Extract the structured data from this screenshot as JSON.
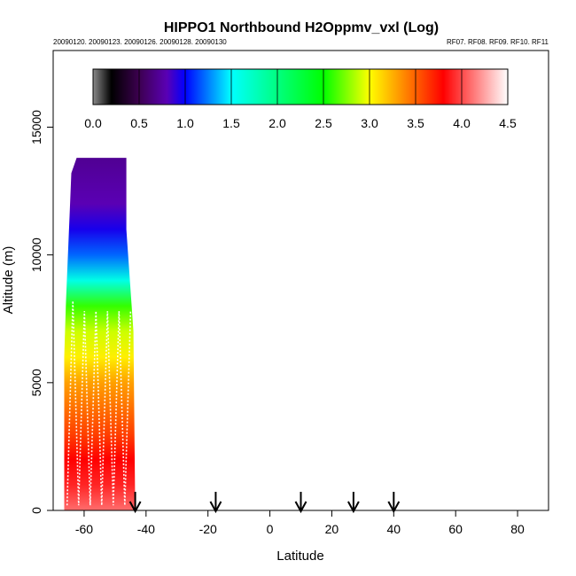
{
  "chart_data": {
    "type": "heatmap",
    "title": "HIPPO1 Northbound H2Oppmv_vxl (Log)",
    "subtitle_left": "20090120. 20090123. 20090126. 20090128. 20090130",
    "subtitle_right": "RF07. RF08. RF09. RF10. RF11",
    "xlabel": "Latitude",
    "ylabel": "Altitude (m)",
    "xlim": [
      -70,
      90
    ],
    "ylim": [
      0,
      18000
    ],
    "x_ticks": [
      "-60",
      "-40",
      "-20",
      "0",
      "20",
      "40",
      "60",
      "80"
    ],
    "x_tick_values": [
      -60,
      -40,
      -20,
      0,
      20,
      40,
      60,
      80
    ],
    "y_ticks": [
      "0",
      "5000",
      "10000",
      "15000"
    ],
    "y_tick_values": [
      0,
      5000,
      10000,
      15000
    ],
    "colorbar": {
      "range": [
        0,
        4.5
      ],
      "tick_labels": [
        "0.0",
        "0.5",
        "1.0",
        "1.5",
        "2.0",
        "2.5",
        "3.0",
        "3.5",
        "4.0",
        "4.5"
      ],
      "tick_values": [
        0,
        0.5,
        1.0,
        1.5,
        2.0,
        2.5,
        3.0,
        3.5,
        4.0,
        4.5
      ],
      "color_stops": [
        {
          "v": 0.0,
          "c": "#8a8a8a"
        },
        {
          "v": 0.2,
          "c": "#000000"
        },
        {
          "v": 0.5,
          "c": "#3d0050"
        },
        {
          "v": 0.8,
          "c": "#5a00b4"
        },
        {
          "v": 1.0,
          "c": "#0000ff"
        },
        {
          "v": 1.5,
          "c": "#00ffff"
        },
        {
          "v": 2.0,
          "c": "#00ff80"
        },
        {
          "v": 2.5,
          "c": "#00ff00"
        },
        {
          "v": 3.0,
          "c": "#ffff00"
        },
        {
          "v": 3.4,
          "c": "#ff8000"
        },
        {
          "v": 3.8,
          "c": "#ff0000"
        },
        {
          "v": 4.5,
          "c": "#ffffff"
        }
      ]
    },
    "data_region": {
      "lat_range": [
        -67,
        -43.5
      ],
      "top_altitude": 13800,
      "profile": [
        {
          "alt": 0,
          "value": 4.1
        },
        {
          "alt": 1000,
          "value": 3.9
        },
        {
          "alt": 2000,
          "value": 3.8
        },
        {
          "alt": 3000,
          "value": 3.6
        },
        {
          "alt": 4000,
          "value": 3.45
        },
        {
          "alt": 5000,
          "value": 3.3
        },
        {
          "alt": 6000,
          "value": 3.05
        },
        {
          "alt": 7000,
          "value": 2.9
        },
        {
          "alt": 8000,
          "value": 2.6
        },
        {
          "alt": 9000,
          "value": 1.6
        },
        {
          "alt": 10000,
          "value": 1.2
        },
        {
          "alt": 11000,
          "value": 0.95
        },
        {
          "alt": 12000,
          "value": 0.8
        },
        {
          "alt": 13800,
          "value": 0.7
        }
      ]
    },
    "arrow_latitudes": [
      -43.5,
      -17.5,
      10,
      27,
      40
    ]
  }
}
